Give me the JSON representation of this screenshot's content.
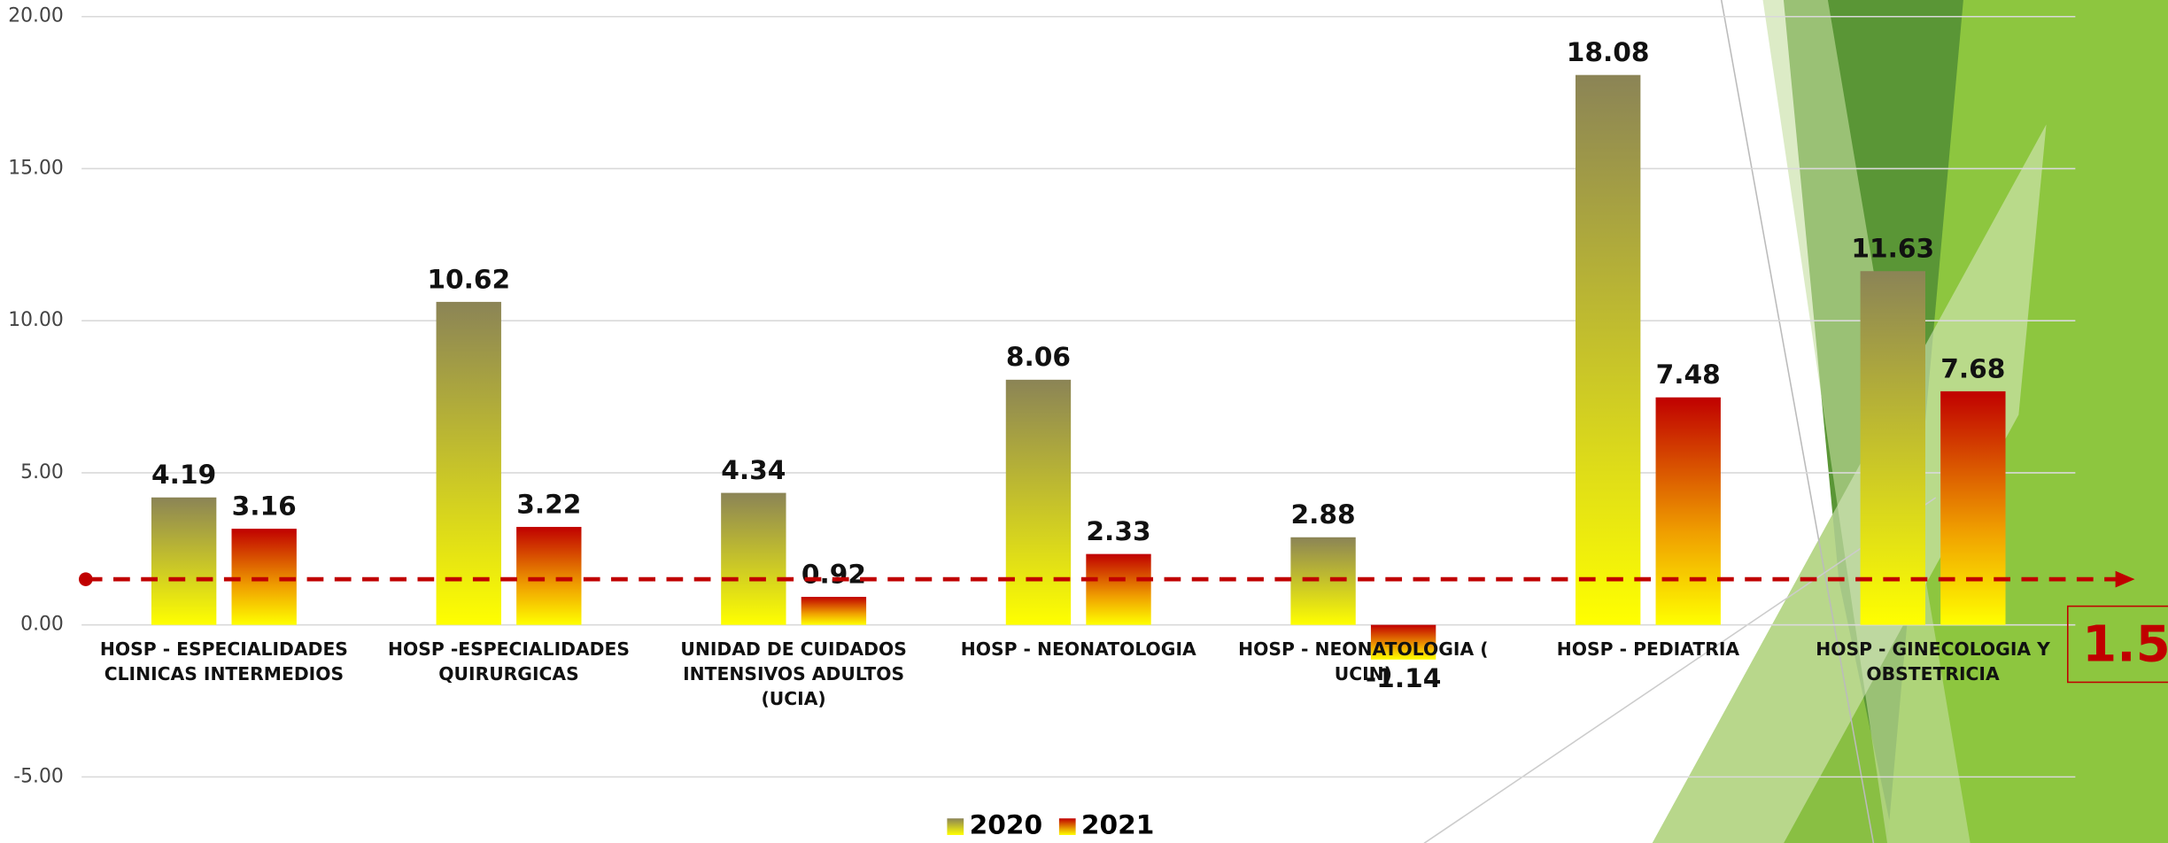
{
  "chart_data": {
    "type": "bar",
    "categories": [
      "HOSP - ESPECIALIDADES CLINICAS INTERMEDIOS",
      "HOSP -ESPECIALIDADES QUIRURGICAS",
      "UNIDAD DE CUIDADOS INTENSIVOS ADULTOS (UCIA)",
      "HOSP - NEONATOLOGIA",
      "HOSP - NEONATOLOGIA ( UCIN)",
      "HOSP - PEDIATRIA",
      "HOSP - GINECOLOGIA Y OBSTETRICIA"
    ],
    "series": [
      {
        "name": "2020",
        "color": "#8b8456",
        "values": [
          4.19,
          10.62,
          4.34,
          8.06,
          2.88,
          18.08,
          11.63
        ]
      },
      {
        "name": "2021",
        "color": "#c00000",
        "values": [
          3.16,
          3.22,
          0.92,
          2.33,
          -1.14,
          7.48,
          7.68
        ]
      }
    ],
    "gradient_to": "#ffff00",
    "ylim": [
      -7,
      20
    ],
    "yticks": [
      {
        "value": -5,
        "label": "-5.00"
      },
      {
        "value": 0,
        "label": "0.00"
      },
      {
        "value": 5,
        "label": "5.00"
      },
      {
        "value": 10,
        "label": "10.00"
      },
      {
        "value": 15,
        "label": "15.00"
      },
      {
        "value": 20,
        "label": "20.00"
      }
    ],
    "grid": true,
    "reference_line": 1.5,
    "legend": "bottom"
  }
}
